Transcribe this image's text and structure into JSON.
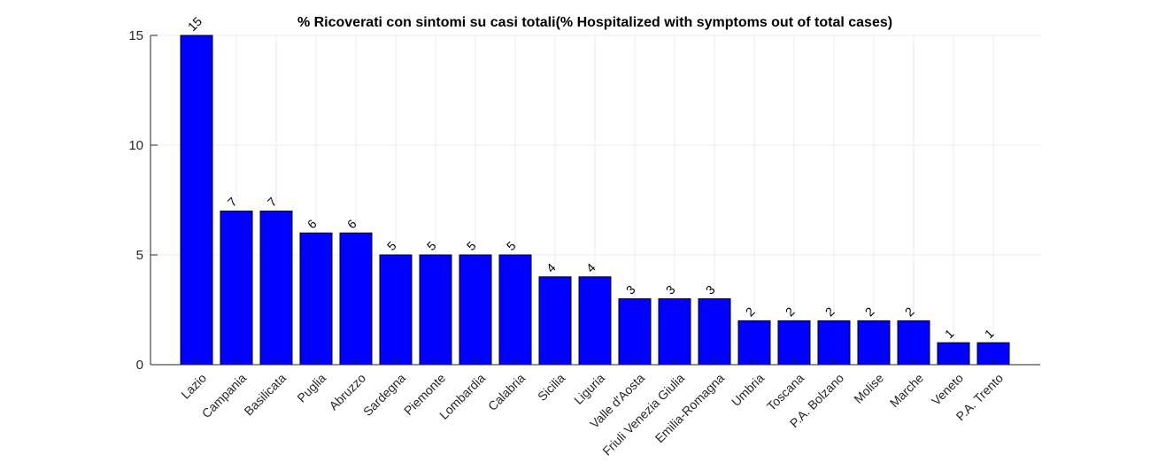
{
  "chart_data": {
    "type": "bar",
    "title": "% Ricoverati con sintomi su casi totali(% Hospitalized with symptoms out of total cases)",
    "xlabel": "",
    "ylabel": "",
    "categories": [
      "Lazio",
      "Campania",
      "Basilicata",
      "Puglia",
      "Abruzzo",
      "Sardegna",
      "Piemonte",
      "Lombardia",
      "Calabria",
      "Sicilia",
      "Liguria",
      "Valle d'Aosta",
      "Friuli Venezia Giulia",
      "Emilia-Romagna",
      "Umbria",
      "Toscana",
      "P.A. Bolzano",
      "Molise",
      "Marche",
      "Veneto",
      "P.A. Trento"
    ],
    "values": [
      15,
      7,
      7,
      6,
      6,
      5,
      5,
      5,
      5,
      4,
      4,
      3,
      3,
      3,
      2,
      2,
      2,
      2,
      2,
      1,
      1
    ],
    "ylim": [
      0,
      15
    ],
    "yticks": [
      0,
      5,
      10,
      15
    ],
    "grid": true,
    "bar_color": "#0000ff",
    "data_labels": true
  }
}
